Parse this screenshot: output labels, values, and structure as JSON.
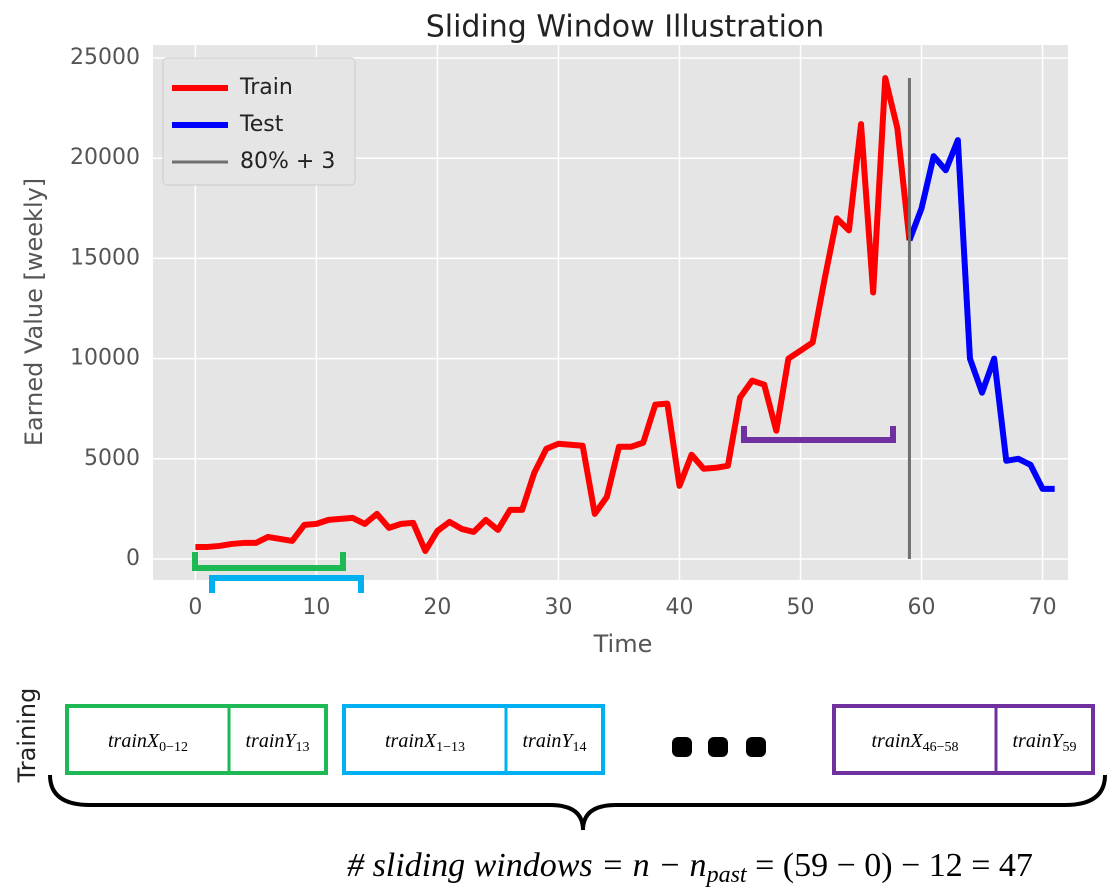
{
  "chart_data": {
    "type": "line",
    "title": "Sliding Window Illustration",
    "xlabel": "Time",
    "ylabel": "Earned Value [weekly]",
    "xlim": [
      -3.5,
      72.1
    ],
    "ylim": [
      -1050,
      25650
    ],
    "xticks": [
      0,
      10,
      20,
      30,
      40,
      50,
      60,
      70
    ],
    "yticks": [
      0,
      5000,
      10000,
      15000,
      20000,
      25000
    ],
    "grid": true,
    "legend": "upper left",
    "series": [
      {
        "name": "Train",
        "color": "#ff0000",
        "x": [
          0,
          1,
          2,
          3,
          4,
          5,
          6,
          7,
          8,
          9,
          10,
          11,
          12,
          13,
          14,
          15,
          16,
          17,
          18,
          19,
          20,
          21,
          22,
          23,
          24,
          25,
          26,
          27,
          28,
          29,
          30,
          31,
          32,
          33,
          34,
          35,
          36,
          37,
          38,
          39,
          40,
          41,
          42,
          43,
          44,
          45,
          46,
          47,
          48,
          49,
          50,
          51,
          52,
          53,
          54,
          55,
          56,
          57,
          58,
          59
        ],
        "values": [
          600,
          600,
          650,
          750,
          800,
          800,
          1100,
          1000,
          900,
          1700,
          1750,
          1950,
          2000,
          2050,
          1750,
          2250,
          1550,
          1750,
          1800,
          400,
          1400,
          1850,
          1500,
          1350,
          1950,
          1450,
          2450,
          2450,
          4300,
          5500,
          5750,
          5700,
          5650,
          2250,
          3100,
          5600,
          5600,
          5800,
          7700,
          7750,
          3650,
          5200,
          4500,
          4550,
          4650,
          8050,
          8900,
          8700,
          6400,
          10000,
          10400,
          10800,
          14000,
          17000,
          16400,
          21700,
          13300,
          24000,
          21500,
          15900
        ]
      },
      {
        "name": "Test",
        "color": "#0000ff",
        "x": [
          59,
          60,
          61,
          62,
          63,
          64,
          65,
          66,
          67,
          68,
          69,
          70,
          71
        ],
        "values": [
          15900,
          17500,
          20100,
          19400,
          20900,
          10000,
          8300,
          10000,
          4900,
          5000,
          4700,
          3500,
          3500
        ]
      }
    ],
    "vline": {
      "name": "80% + 3",
      "color": "#707070",
      "x": 59,
      "ymin": 0,
      "ymax": 24000
    }
  },
  "diagram": {
    "side_label": "Training",
    "boxes": [
      {
        "x_label": "trainX",
        "x_sub": "0−12",
        "y_label": "trainY",
        "y_sub": "13",
        "color": "#1db954"
      },
      {
        "x_label": "trainX",
        "x_sub": "1−13",
        "y_label": "trainY",
        "y_sub": "14",
        "color": "#00b0f0"
      },
      {
        "x_label": "trainX",
        "x_sub": "46−58",
        "y_label": "trainY",
        "y_sub": "59",
        "color": "#7030a0"
      }
    ],
    "formula": [
      "# sliding windows = n − n",
      "past",
      " = (59 − 0) − 12 = 47"
    ]
  }
}
